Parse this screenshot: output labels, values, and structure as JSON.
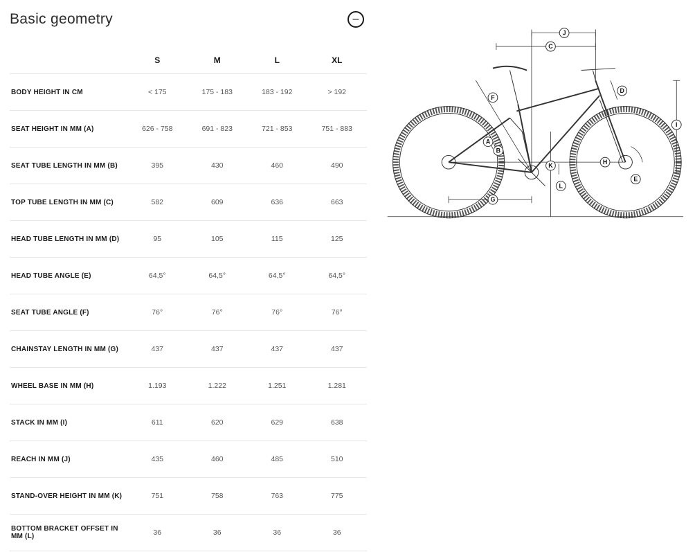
{
  "title": "Basic geometry",
  "collapse_glyph": "–",
  "columns": [
    "S",
    "M",
    "L",
    "XL"
  ],
  "rows": [
    {
      "label": "BODY HEIGHT IN CM",
      "values": [
        "< 175",
        "175 - 183",
        "183 - 192",
        "> 192"
      ]
    },
    {
      "label": "SEAT HEIGHT IN MM (A)",
      "values": [
        "626 - 758",
        "691 - 823",
        "721 - 853",
        "751 - 883"
      ]
    },
    {
      "label": "SEAT TUBE LENGTH IN MM (B)",
      "values": [
        "395",
        "430",
        "460",
        "490"
      ]
    },
    {
      "label": "TOP TUBE LENGTH IN MM (C)",
      "values": [
        "582",
        "609",
        "636",
        "663"
      ]
    },
    {
      "label": "HEAD TUBE LENGTH IN MM (D)",
      "values": [
        "95",
        "105",
        "115",
        "125"
      ]
    },
    {
      "label": "HEAD TUBE ANGLE (E)",
      "values": [
        "64,5°",
        "64,5°",
        "64,5°",
        "64,5°"
      ]
    },
    {
      "label": "SEAT TUBE ANGLE (F)",
      "values": [
        "76°",
        "76°",
        "76°",
        "76°"
      ]
    },
    {
      "label": "CHAINSTAY LENGTH IN MM (G)",
      "values": [
        "437",
        "437",
        "437",
        "437"
      ]
    },
    {
      "label": "WHEEL BASE IN MM (H)",
      "values": [
        "1.193",
        "1.222",
        "1.251",
        "1.281"
      ]
    },
    {
      "label": "STACK IN MM (I)",
      "values": [
        "611",
        "620",
        "629",
        "638"
      ]
    },
    {
      "label": "REACH IN MM (J)",
      "values": [
        "435",
        "460",
        "485",
        "510"
      ]
    },
    {
      "label": "STAND-OVER HEIGHT IN MM (K)",
      "values": [
        "751",
        "758",
        "763",
        "775"
      ]
    },
    {
      "label": "BOTTOM BRACKET OFFSET IN MM (L)",
      "values": [
        "36",
        "36",
        "36",
        "36"
      ]
    }
  ],
  "diagram": {
    "labels": [
      "A",
      "B",
      "C",
      "D",
      "E",
      "F",
      "G",
      "H",
      "I",
      "J",
      "K",
      "L"
    ],
    "stroke_color": "#333333",
    "background": "#ffffff"
  }
}
